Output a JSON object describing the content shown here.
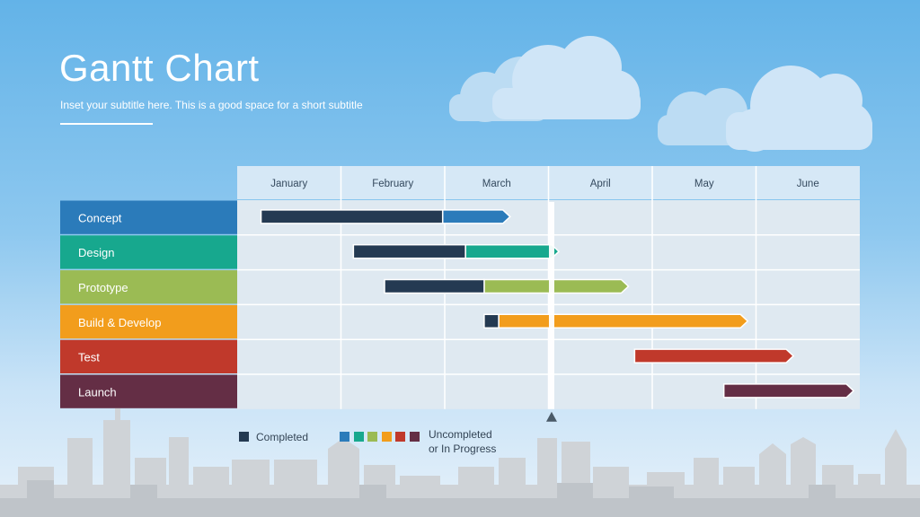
{
  "header": {
    "title": "Gantt Chart",
    "subtitle": "Inset your subtitle here. This is a good space for a short subtitle"
  },
  "legend": {
    "completed_label": "Completed",
    "uncompleted_label_line1": "Uncompleted",
    "uncompleted_label_line2": "or In Progress"
  },
  "colors": {
    "completed": "#243a52",
    "grid_header": "#d6e8f6",
    "grid_body": "#dfe9f1",
    "today_marker": "#ffffff"
  },
  "chart_data": {
    "type": "gantt",
    "months": [
      "January",
      "February",
      "March",
      "April",
      "May",
      "June"
    ],
    "today_month_position": 3.03,
    "tasks": [
      {
        "name": "Concept",
        "color": "#2b7bba",
        "start": 0.23,
        "completed_end": 1.98,
        "end": 2.63
      },
      {
        "name": "Design",
        "color": "#17a88e",
        "start": 1.12,
        "completed_end": 2.2,
        "end": 3.1
      },
      {
        "name": "Prototype",
        "color": "#9bbb54",
        "start": 1.42,
        "completed_end": 2.38,
        "end": 3.77
      },
      {
        "name": "Build & Develop",
        "color": "#f29d1c",
        "start": 2.38,
        "completed_end": 2.52,
        "end": 4.92
      },
      {
        "name": "Test",
        "color": "#c0392b",
        "start": 3.83,
        "completed_end": 3.83,
        "end": 5.36
      },
      {
        "name": "Launch",
        "color": "#642e45",
        "start": 4.69,
        "completed_end": 4.69,
        "end": 5.94
      }
    ]
  }
}
